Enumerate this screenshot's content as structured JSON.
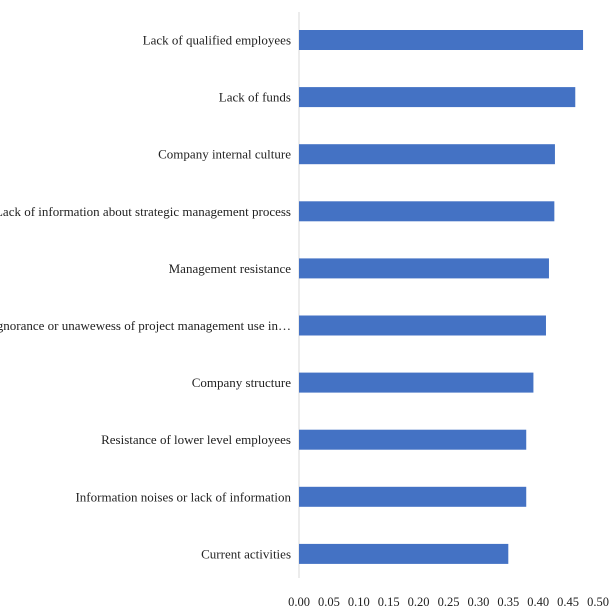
{
  "chart_data": {
    "type": "bar",
    "orientation": "horizontal",
    "title": "",
    "xlabel": "",
    "ylabel": "",
    "categories": [
      "Lack of qualified employees",
      "Lack of funds",
      "Company internal culture",
      "Lack of information about strategic management process",
      "Management resistance",
      "Ignorance or unawewess of project management use in…",
      "Company structure",
      "Resistance of lower level employees",
      "Information noises or lack of information",
      "Current activities"
    ],
    "values": [
      0.475,
      0.462,
      0.428,
      0.427,
      0.418,
      0.413,
      0.392,
      0.38,
      0.38,
      0.35
    ],
    "xlim": [
      0,
      0.5
    ],
    "xticks": [
      "0.00",
      "0.05",
      "0.10",
      "0.15",
      "0.20",
      "0.25",
      "0.30",
      "0.35",
      "0.40",
      "0.45",
      "0.50"
    ],
    "bar_color": "#4472C4",
    "axis_color": "#d9d9d9",
    "grid": false,
    "legend": "none"
  }
}
